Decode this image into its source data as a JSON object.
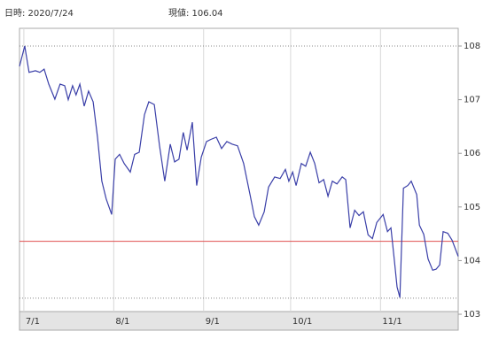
{
  "chart_data": {
    "type": "line",
    "header": {
      "date_label": "日時: 2020/7/24",
      "price_label": "現値: 106.04"
    },
    "x": [
      -1.5,
      0.3,
      1.8,
      4.0,
      5.5,
      7.0,
      8.6,
      10.7,
      12.5,
      14.1,
      15.3,
      16.8,
      18.0,
      19.3,
      20.8,
      22.3,
      23.9,
      25.4,
      26.9,
      28.4,
      30.3,
      31.5,
      33.0,
      34.6,
      36.7,
      38.2,
      39.8,
      41.6,
      43.1,
      45.0,
      46.8,
      48.6,
      50.5,
      52.0,
      53.5,
      55.0,
      56.3,
      58.1,
      59.6,
      61.2,
      63.0,
      64.5,
      66.4,
      68.2,
      70.0,
      71.9,
      73.7,
      75.8,
      78.0,
      79.5,
      81.0,
      82.9,
      84.4,
      86.5,
      88.4,
      90.2,
      91.4,
      92.7,
      93.9,
      95.7,
      97.2,
      98.8,
      100.3,
      101.8,
      103.4,
      104.9,
      106.4,
      108.0,
      109.8,
      111.0,
      112.5,
      114.1,
      115.6,
      117.1,
      118.7,
      120.2,
      121.7,
      123.9,
      125.4,
      126.6,
      127.8,
      128.7,
      129.7,
      130.9,
      132.4,
      133.6,
      135.5,
      136.4,
      137.9,
      139.4,
      141.0,
      142.2,
      143.4,
      144.6,
      146.2,
      147.7,
      149.8
    ],
    "series": [
      {
        "color": "#3a3fa8",
        "values": [
          107.62,
          108.0,
          107.51,
          107.54,
          107.51,
          107.57,
          107.29,
          107.01,
          107.29,
          107.26,
          107.0,
          107.26,
          107.09,
          107.29,
          106.88,
          107.16,
          106.96,
          106.3,
          105.48,
          105.15,
          104.86,
          105.89,
          105.98,
          105.81,
          105.65,
          105.98,
          106.02,
          106.72,
          106.96,
          106.91,
          106.14,
          105.48,
          106.17,
          105.84,
          105.89,
          106.39,
          106.06,
          106.58,
          105.4,
          105.93,
          106.22,
          106.26,
          106.3,
          106.09,
          106.22,
          106.17,
          106.14,
          105.81,
          105.23,
          104.82,
          104.66,
          104.91,
          105.37,
          105.56,
          105.53,
          105.7,
          105.48,
          105.65,
          105.4,
          105.81,
          105.76,
          106.02,
          105.81,
          105.45,
          105.51,
          105.2,
          105.48,
          105.43,
          105.56,
          105.51,
          104.61,
          104.94,
          104.84,
          104.91,
          104.48,
          104.41,
          104.71,
          104.86,
          104.54,
          104.61,
          104.0,
          103.51,
          103.31,
          105.35,
          105.4,
          105.48,
          105.23,
          104.66,
          104.49,
          104.03,
          103.82,
          103.84,
          103.92,
          104.54,
          104.51,
          104.38,
          104.08
        ]
      }
    ],
    "xlim": [
      -1.5,
      149.8
    ],
    "xticks": [
      {
        "value": 0,
        "label": "7/1"
      },
      {
        "value": 31,
        "label": "8/1"
      },
      {
        "value": 62,
        "label": "9/1"
      },
      {
        "value": 92,
        "label": "10/1"
      },
      {
        "value": 123,
        "label": "11/1"
      }
    ],
    "ylim": [
      103.05,
      108.33
    ],
    "yticks": [
      103,
      104,
      105,
      106,
      107,
      108
    ],
    "grid": "x",
    "reference_lines": [
      {
        "value": 108.0,
        "color": "#888888",
        "style": "dotted"
      },
      {
        "value": 103.3,
        "color": "#888888",
        "style": "dotted"
      },
      {
        "value": 104.36,
        "color": "#e05050",
        "style": "solid"
      }
    ]
  }
}
